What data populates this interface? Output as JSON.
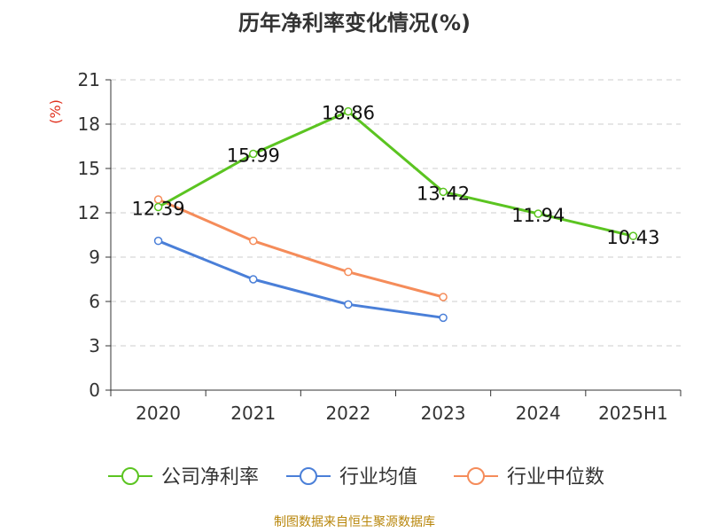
{
  "chart_data": {
    "type": "line",
    "title": "历年净利率变化情况(%)",
    "ylabel": "(%)",
    "xlabel": "",
    "categories": [
      "2020",
      "2021",
      "2022",
      "2023",
      "2024",
      "2025H1"
    ],
    "ylim": [
      0,
      21
    ],
    "yticks": [
      0,
      3,
      6,
      9,
      12,
      15,
      18,
      21
    ],
    "grid": true,
    "legend_position": "bottom",
    "series": [
      {
        "name": "公司净利率",
        "color": "#5bc421",
        "values": [
          12.39,
          15.99,
          18.86,
          13.42,
          11.94,
          10.43
        ],
        "show_labels": true
      },
      {
        "name": "行业均值",
        "color": "#4a7fd8",
        "values": [
          10.1,
          7.5,
          5.8,
          4.9,
          null,
          null
        ],
        "show_labels": false
      },
      {
        "name": "行业中位数",
        "color": "#f58c5a",
        "values": [
          12.9,
          10.1,
          8.0,
          6.3,
          null,
          null
        ],
        "show_labels": false
      }
    ]
  },
  "source": "制图数据来自恒生聚源数据库",
  "colors": {
    "axis": "#333333",
    "grid": "#cccccc",
    "ylabel": "#e0301e",
    "source": "#b8860b"
  }
}
